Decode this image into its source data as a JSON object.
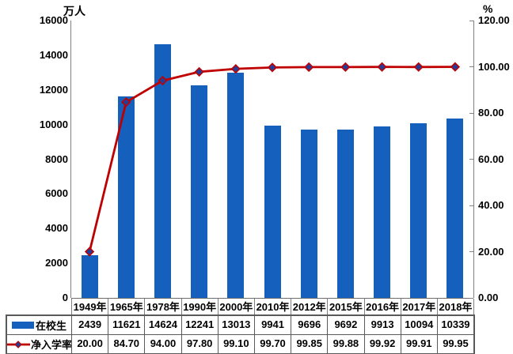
{
  "chart_data": {
    "type": "bar",
    "combo": "bar+line",
    "title": "",
    "categories": [
      "1949年",
      "1965年",
      "1978年",
      "1990年",
      "2000年",
      "2010年",
      "2012年",
      "2015年",
      "2016年",
      "2017年",
      "2018年"
    ],
    "series": [
      {
        "name": "在校生",
        "type": "bar",
        "axis": "left",
        "color": "#1560BD",
        "values": [
          2439,
          11621,
          14624,
          12241,
          13013,
          9941,
          9696,
          9692,
          9913,
          10094,
          10339
        ],
        "labels": [
          "2439",
          "11621",
          "14624",
          "12241",
          "13013",
          "9941",
          "9696",
          "9692",
          "9913",
          "10094",
          "10339"
        ]
      },
      {
        "name": "净入学率",
        "type": "line",
        "axis": "right",
        "color": "#C00000",
        "marker": "diamond",
        "marker_color": "#233E99",
        "values": [
          20.0,
          84.7,
          94.0,
          97.8,
          99.1,
          99.7,
          99.85,
          99.88,
          99.92,
          99.91,
          99.95
        ],
        "labels": [
          "20.00",
          "84.70",
          "94.00",
          "97.80",
          "99.10",
          "99.70",
          "99.85",
          "99.88",
          "99.92",
          "99.91",
          "99.95"
        ]
      }
    ],
    "left_axis": {
      "unit": "万人",
      "min": 0,
      "max": 16000,
      "step": 2000,
      "tick_labels": [
        "0",
        "2000",
        "4000",
        "6000",
        "8000",
        "10000",
        "12000",
        "14000",
        "16000"
      ]
    },
    "right_axis": {
      "unit": "%",
      "min": 0,
      "max": 120,
      "step": 20,
      "tick_labels": [
        "0.00",
        "20.00",
        "40.00",
        "60.00",
        "80.00",
        "100.00",
        "120.00"
      ]
    },
    "grid": false,
    "legend_position": "data-table-left",
    "data_table": true
  },
  "colors": {
    "bar": "#1560BD",
    "line": "#C00000",
    "marker_fill": "#233E99",
    "marker_stroke": "#C00000",
    "axis": "#808080",
    "x_axis": "#6E6E6E",
    "table_border": "#595959",
    "year_separator": "#808080",
    "background": "#FFFFFF",
    "text": "#000000"
  }
}
